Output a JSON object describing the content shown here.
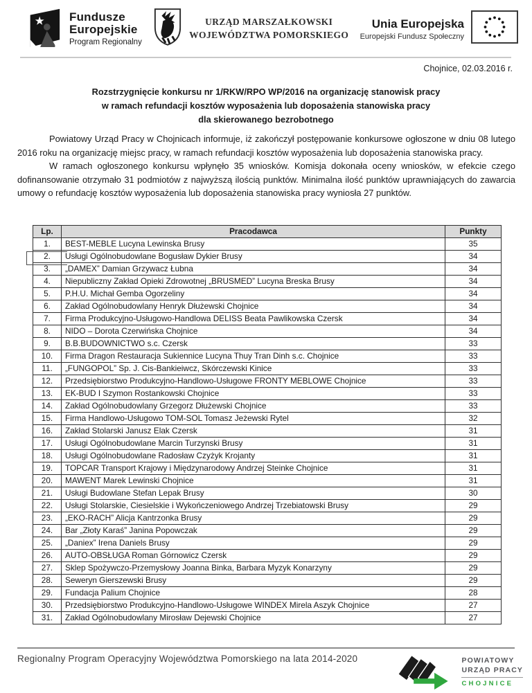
{
  "colors": {
    "accent_green": "#2fa73e",
    "table_header_bg": "#d9d9d9",
    "text": "#1a1a1a",
    "footer_text": "#3d3d3d"
  },
  "header": {
    "logo_funds": {
      "title": "Fundusze\nEuropejskie",
      "title_line1": "Fundusze",
      "title_line2": "Europejskie",
      "subtitle": "Program Regionalny"
    },
    "logo_office": {
      "line1": "URZĄD MARSZAŁKOWSKI",
      "line2": "WOJEWÓDZTWA POMORSKIEGO"
    },
    "logo_eu": {
      "title": "Unia Europejska",
      "subtitle": "Europejski Fundusz Społeczny"
    },
    "date_line": "Chojnice, 02.03.2016 r."
  },
  "title": {
    "line1": "Rozstrzygnięcie konkursu nr 1/RKW/RPO WP/2016 na organizację stanowisk pracy",
    "line2": "w ramach refundacji kosztów wyposażenia lub doposażenia stanowiska pracy",
    "line3": "dla skierowanego bezrobotnego"
  },
  "paragraphs": [
    "Powiatowy Urząd Pracy w Chojnicach informuje, iż zakończył postępowanie konkursowe ogłoszone w dniu 08 lutego 2016 roku na organizację miejsc pracy, w ramach refundacji kosztów wyposażenia lub doposażenia stanowiska pracy.",
    "W ramach ogłoszonego konkursu wpłynęło 35 wniosków. Komisja dokonała oceny wniosków, w efekcie czego dofinansowanie otrzymało 31 podmiotów z najwyższą ilością punktów. Minimalna ilość punktów uprawniających do zawarcia umowy o refundację kosztów wyposażenia lub doposażenia stanowiska pracy wyniosła 27 punktów."
  ],
  "table": {
    "headers": {
      "lp": "Lp.",
      "employer": "Pracodawca",
      "points": "Punkty"
    },
    "rows": [
      {
        "lp": "1.",
        "employer": "BEST-MEBLE Lucyna Lewinska Brusy",
        "points": "35"
      },
      {
        "lp": "2.",
        "employer": "Usługi Ogólnobudowlane Bogusław Dykier Brusy",
        "points": "34"
      },
      {
        "lp": "3.",
        "employer": "„DAMEX” Damian Grzywacz Łubna",
        "points": "34"
      },
      {
        "lp": "4.",
        "employer": "Niepubliczny Zakład Opieki  Zdrowotnej „BRUSMED” Lucyna Breska Brusy",
        "points": "34"
      },
      {
        "lp": "5.",
        "employer": "P.H.U. Michał Gemba Ogorzeliny",
        "points": "34"
      },
      {
        "lp": "6.",
        "employer": "Zakład Ogólnobudowlany Henryk Dłużewski Chojnice",
        "points": "34"
      },
      {
        "lp": "7.",
        "employer": "Firma Produkcyjno-Usługowo-Handlowa DELISS Beata Pawlikowska Czersk",
        "points": "34"
      },
      {
        "lp": "8.",
        "employer": "NIDO – Dorota Czerwińska  Chojnice",
        "points": "34"
      },
      {
        "lp": "9.",
        "employer": "B.B.BUDOWNICTWO s.c. Czersk",
        "points": "33"
      },
      {
        "lp": "10.",
        "employer": "Firma Dragon Restauracja Sukiennice Lucyna Thuy Tran Dinh s.c. Chojnice",
        "points": "33"
      },
      {
        "lp": "11.",
        "employer": "„FUNGOPOL” Sp. J. Cis-Bankieiwcz, Skórczewski Kinice",
        "points": "33"
      },
      {
        "lp": "12.",
        "employer": "Przedsiębiorstwo Produkcyjno-Handlowo-Usługowe FRONTY MEBLOWE Chojnice",
        "points": "33"
      },
      {
        "lp": "13.",
        "employer": "EK-BUD I Szymon Rostankowski Chojnice",
        "points": "33"
      },
      {
        "lp": "14.",
        "employer": "Zakład Ogólnobudowlany Grzegorz Dłużewski Chojnice",
        "points": "33"
      },
      {
        "lp": "15.",
        "employer": "Firma Handlowo-Usługowo TOM-SOL Tomasz Jeżewski Rytel",
        "points": "32"
      },
      {
        "lp": "16.",
        "employer": "Zakład Stolarski Janusz Elak Czersk",
        "points": "31"
      },
      {
        "lp": "17.",
        "employer": "Usługi Ogólnobudowlane Marcin Turzynski Brusy",
        "points": "31"
      },
      {
        "lp": "18.",
        "employer": "Usługi Ogólnobudowlane Radosław Czyżyk Krojanty",
        "points": "31"
      },
      {
        "lp": "19.",
        "employer": "TOPCAR Transport Krajowy i Międzynarodowy Andrzej Steinke Chojnice",
        "points": "31"
      },
      {
        "lp": "20.",
        "employer": "MAWENT Marek Lewinski Chojnice",
        "points": "31"
      },
      {
        "lp": "21.",
        "employer": "Usługi Budowlane Stefan Lepak Brusy",
        "points": "30"
      },
      {
        "lp": "22.",
        "employer": "Usługi Stolarskie, Ciesielskie i Wykończeniowego Andrzej Trzebiatowski Brusy",
        "points": "29"
      },
      {
        "lp": "23.",
        "employer": "„EKO-RACH” Alicja Kantrzonka Brusy",
        "points": "29"
      },
      {
        "lp": "24.",
        "employer": "Bar „Złoty Karaś” Janina Popowczak",
        "points": "29"
      },
      {
        "lp": "25.",
        "employer": "„Daniex” Irena Daniels Brusy",
        "points": "29"
      },
      {
        "lp": "26.",
        "employer": "AUTO-OBSŁUGA Roman Górnowicz Czersk",
        "points": "29"
      },
      {
        "lp": "27.",
        "employer": "Sklep Spożywczo-Przemysłowy  Joanna Binka, Barbara Myzyk Konarzyny",
        "points": "29"
      },
      {
        "lp": "28.",
        "employer": "Seweryn Gierszewski Brusy",
        "points": "29"
      },
      {
        "lp": "29.",
        "employer": "Fundacja Palium Chojnice",
        "points": "28"
      },
      {
        "lp": "30.",
        "employer": "Przedsiębiorstwo Produkcyjno-Handlowo-Usługowe WINDEX Mirela Aszyk Chojnice",
        "points": "27"
      },
      {
        "lp": "31.",
        "employer": "Zakład Ogólnobudowlany Mirosław Dejewski Chojnice",
        "points": "27"
      }
    ]
  },
  "footer": {
    "program": "Regionalny Program Operacyjny Województwa Pomorskiego na lata 2014-2020",
    "pup_logo": {
      "line1": "POWIATOWY",
      "line2": "URZĄD PRACY",
      "city": "CHOJNICE"
    }
  }
}
